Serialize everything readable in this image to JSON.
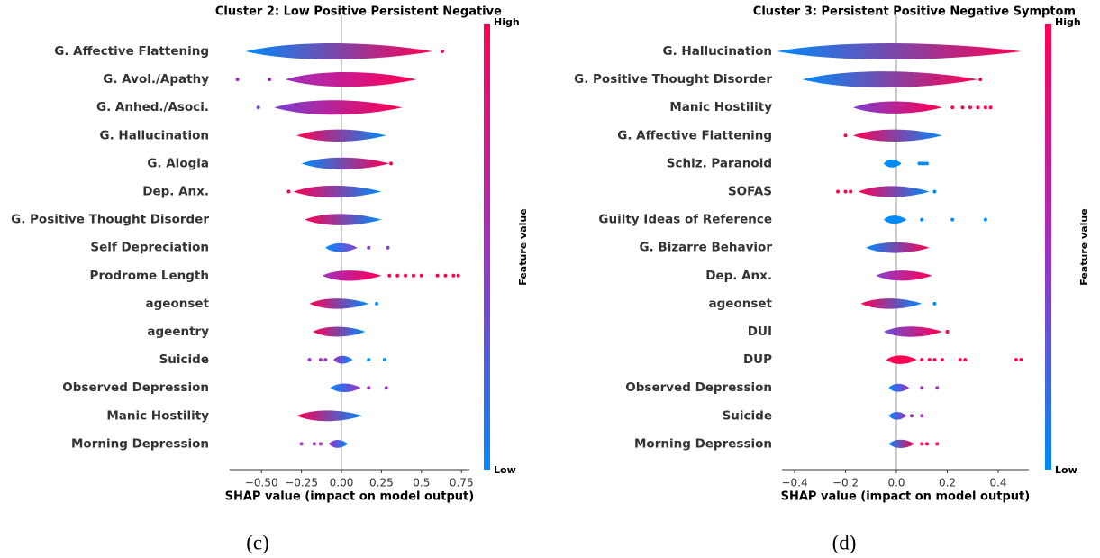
{
  "chart_data": [
    {
      "type": "violin",
      "title": "Cluster 2: Low Positive Persistent Negative",
      "xlabel": "SHAP value (impact on model output)",
      "caption": "(c)",
      "categories": [
        "G. Affective Flattening",
        "G. Avol./Apathy",
        "G. Anhed./Asoci.",
        "G. Hallucination",
        "G. Alogia",
        "Dep. Anx.",
        "G. Positive Thought Disorder",
        "Self Depreciation",
        "Prodrome Length",
        "ageonset",
        "ageentry",
        "Suicide",
        "Observed Depression",
        "Manic Hostility",
        "Morning Depression"
      ],
      "ranges": [
        [
          -0.6,
          0.57
        ],
        [
          -0.35,
          0.47
        ],
        [
          -0.42,
          0.38
        ],
        [
          -0.28,
          0.28
        ],
        [
          -0.25,
          0.3
        ],
        [
          -0.3,
          0.25
        ],
        [
          -0.23,
          0.25
        ],
        [
          -0.1,
          0.1
        ],
        [
          -0.12,
          0.25
        ],
        [
          -0.2,
          0.17
        ],
        [
          -0.18,
          0.15
        ],
        [
          -0.05,
          0.07
        ],
        [
          -0.07,
          0.12
        ],
        [
          -0.28,
          0.13
        ],
        [
          -0.08,
          0.04
        ]
      ],
      "colors": [
        [
          "#008afb",
          "#ff0052"
        ],
        [
          "#a030c0",
          "#ff0052"
        ],
        [
          "#7a40d0",
          "#ff0052"
        ],
        [
          "#ff0052",
          "#008afb"
        ],
        [
          "#008afb",
          "#ff0052"
        ],
        [
          "#ff0052",
          "#008afb"
        ],
        [
          "#ff0052",
          "#008afb"
        ],
        [
          "#008afb",
          "#8a40d0"
        ],
        [
          "#a030c0",
          "#ff0052"
        ],
        [
          "#ff0052",
          "#008afb"
        ],
        [
          "#ff0052",
          "#008afb"
        ],
        [
          "#a030c0",
          "#008afb"
        ],
        [
          "#008afb",
          "#a030c0"
        ],
        [
          "#ff0052",
          "#008afb"
        ],
        [
          "#a030c0",
          "#008afb"
        ]
      ],
      "outliers": [
        [
          0.63
        ],
        [
          -0.65,
          -0.45
        ],
        [
          -0.52
        ],
        [],
        [
          0.31
        ],
        [
          -0.33
        ],
        [],
        [
          0.17,
          0.29
        ],
        [
          0.3,
          0.35,
          0.4,
          0.45,
          0.5,
          0.6,
          0.65,
          0.7,
          0.73
        ],
        [
          0.22
        ],
        [],
        [
          -0.2,
          -0.13,
          -0.1,
          0.17,
          0.27
        ],
        [
          0.17,
          0.28
        ],
        [],
        [
          -0.25,
          -0.17,
          -0.13
        ]
      ],
      "xlim": [
        -0.7,
        0.8
      ],
      "xticks": [
        {
          "value": -0.5,
          "label": "−0.50"
        },
        {
          "value": -0.25,
          "label": "−0.25"
        },
        {
          "value": 0,
          "label": "0.00"
        },
        0.25,
        0.5,
        0.75
      ],
      "colorbar": {
        "label": "Feature value",
        "high": "High",
        "low": "Low",
        "colors": [
          "#ff0052",
          "#a030c0",
          "#008afb"
        ]
      }
    },
    {
      "type": "violin",
      "title": "Cluster 3: Persistent Positive Negative Symptom",
      "xlabel": "SHAP value (impact on model output)",
      "caption": "(d)",
      "categories": [
        "G. Hallucination",
        "G. Positive Thought Disorder",
        "Manic Hostility",
        "G. Affective Flattening",
        "Schiz. Paranoid",
        "SOFAS",
        "Guilty Ideas of Reference",
        "G. Bizarre Behavior",
        "Dep. Anx.",
        "ageonset",
        "DUI",
        "DUP",
        "Observed Depression",
        "Suicide",
        "Morning Depression"
      ],
      "ranges": [
        [
          -0.47,
          0.49
        ],
        [
          -0.37,
          0.32
        ],
        [
          -0.17,
          0.18
        ],
        [
          -0.17,
          0.18
        ],
        [
          -0.05,
          0.02
        ],
        [
          -0.15,
          0.13
        ],
        [
          -0.05,
          0.04
        ],
        [
          -0.12,
          0.13
        ],
        [
          -0.08,
          0.14
        ],
        [
          -0.14,
          0.1
        ],
        [
          -0.05,
          0.18
        ],
        [
          -0.04,
          0.08
        ],
        [
          -0.03,
          0.05
        ],
        [
          -0.03,
          0.04
        ],
        [
          -0.03,
          0.07
        ]
      ],
      "colors": [
        [
          "#008afb",
          "#ff0052"
        ],
        [
          "#008afb",
          "#ff0052"
        ],
        [
          "#7a40d0",
          "#ff0052"
        ],
        [
          "#ff0052",
          "#008afb"
        ],
        [
          "#008afb",
          "#008afb"
        ],
        [
          "#ff0052",
          "#008afb"
        ],
        [
          "#008afb",
          "#008afb"
        ],
        [
          "#008afb",
          "#ff0052"
        ],
        [
          "#8a40d0",
          "#ff0052"
        ],
        [
          "#ff0052",
          "#008afb"
        ],
        [
          "#6a50d8",
          "#ff0052"
        ],
        [
          "#ff0052",
          "#ff0052"
        ],
        [
          "#008afb",
          "#a030c0"
        ],
        [
          "#008afb",
          "#a030c0"
        ],
        [
          "#008afb",
          "#ff0052"
        ]
      ],
      "outliers": [
        [],
        [
          0.33
        ],
        [
          0.22,
          0.26,
          0.29,
          0.32,
          0.35,
          0.37
        ],
        [
          -0.2
        ],
        [
          0.09,
          0.1,
          0.11,
          0.12
        ],
        [
          -0.23,
          -0.2,
          -0.18,
          0.15
        ],
        [
          0.1,
          0.22,
          0.35
        ],
        [],
        [],
        [
          0.15
        ],
        [
          0.2
        ],
        [
          0.1,
          0.13,
          0.15,
          0.18,
          0.25,
          0.27,
          0.47,
          0.49
        ],
        [
          0.1,
          0.16
        ],
        [
          0.06,
          0.1
        ],
        [
          0.1,
          0.12,
          0.16
        ]
      ],
      "xlim": [
        -0.45,
        0.52
      ],
      "xticks": [
        {
          "value": -0.4,
          "label": "−0.4"
        },
        {
          "value": -0.2,
          "label": "−0.2"
        },
        {
          "value": 0,
          "label": "0.0"
        },
        0.2,
        0.4
      ],
      "colorbar": {
        "label": "Feature value",
        "high": "High",
        "low": "Low",
        "colors": [
          "#ff0052",
          "#a030c0",
          "#008afb"
        ]
      }
    }
  ]
}
